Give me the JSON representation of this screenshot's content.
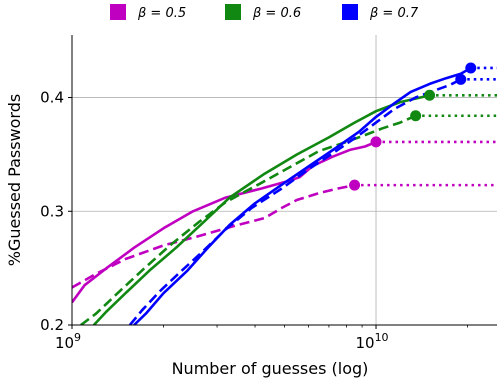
{
  "chart_data": {
    "type": "line",
    "xlabel": "Number of guesses (log)",
    "ylabel": "%Guessed Passwords",
    "x_scale": "log",
    "xlim": [
      1000000000,
      25000000000
    ],
    "ylim": [
      0.2,
      0.455
    ],
    "xticks": [
      {
        "value": 1000000000,
        "base": "10",
        "exp": "9"
      },
      {
        "value": 10000000000,
        "base": "10",
        "exp": "10"
      }
    ],
    "yticks": [
      {
        "value": 0.2,
        "label": "0.2"
      },
      {
        "value": 0.3,
        "label": "0.3"
      },
      {
        "value": 0.4,
        "label": "0.4"
      }
    ],
    "grid": true,
    "legend_placement": "top",
    "legend": [
      {
        "label": "β = 0.5",
        "color": "#c000c0"
      },
      {
        "label": "β = 0.6",
        "color": "#118811"
      },
      {
        "label": "β = 0.7",
        "color": "#0000ff"
      }
    ],
    "series": [
      {
        "group": 0,
        "color": "#c000c0",
        "style": "solid",
        "x": [
          1000000000,
          1100000000,
          1300000000,
          1600000000,
          2000000000,
          2500000000,
          3200000000,
          4200000000,
          5200000000,
          5600000000,
          6200000000,
          7200000000,
          8200000000,
          9200000000,
          10000000000
        ],
        "y": [
          0.22,
          0.235,
          0.25,
          0.268,
          0.285,
          0.3,
          0.312,
          0.32,
          0.327,
          0.33,
          0.34,
          0.348,
          0.354,
          0.357,
          0.361
        ],
        "end": {
          "x": 10000000000,
          "y": 0.361
        },
        "plateau_to": 25000000000
      },
      {
        "group": 0,
        "color": "#c000c0",
        "style": "dashed",
        "x": [
          1000000000,
          1200000000,
          1500000000,
          2000000000,
          2600000000,
          3400000000,
          4300000000,
          4900000000,
          5500000000,
          6500000000,
          7500000000,
          8500000000
        ],
        "y": [
          0.233,
          0.245,
          0.258,
          0.27,
          0.278,
          0.287,
          0.294,
          0.303,
          0.31,
          0.316,
          0.32,
          0.323
        ],
        "end": {
          "x": 8500000000,
          "y": 0.323
        },
        "plateau_to": 25000000000
      },
      {
        "group": 1,
        "color": "#118811",
        "style": "solid",
        "x": [
          1180000000,
          1300000000,
          1500000000,
          1800000000,
          2200000000,
          2700000000,
          3300000000,
          4300000000,
          5500000000,
          7000000000,
          8500000000,
          10000000000,
          12000000000,
          14000000000,
          15000000000
        ],
        "y": [
          0.2,
          0.212,
          0.228,
          0.248,
          0.268,
          0.29,
          0.312,
          0.333,
          0.35,
          0.365,
          0.378,
          0.388,
          0.396,
          0.4,
          0.402
        ],
        "end": {
          "x": 15000000000,
          "y": 0.402
        },
        "plateau_to": 25000000000
      },
      {
        "group": 1,
        "color": "#118811",
        "style": "dashed",
        "x": [
          1070000000,
          1200000000,
          1400000000,
          1700000000,
          2100000000,
          2600000000,
          3200000000,
          4200000000,
          5300000000,
          6500000000,
          7800000000,
          9000000000,
          10500000000,
          12000000000,
          13500000000
        ],
        "y": [
          0.2,
          0.21,
          0.227,
          0.248,
          0.27,
          0.29,
          0.308,
          0.325,
          0.34,
          0.353,
          0.36,
          0.366,
          0.373,
          0.378,
          0.384
        ],
        "end": {
          "x": 13500000000,
          "y": 0.384
        },
        "plateau_to": 25000000000
      },
      {
        "group": 2,
        "color": "#0000ff",
        "style": "solid",
        "x": [
          1600000000,
          1750000000,
          2000000000,
          2400000000,
          2800000000,
          3300000000,
          4000000000,
          5000000000,
          6200000000,
          7500000000,
          8800000000,
          10000000000,
          11500000000,
          13000000000,
          15000000000,
          17000000000,
          19000000000,
          20500000000
        ],
        "y": [
          0.2,
          0.21,
          0.228,
          0.248,
          0.268,
          0.288,
          0.307,
          0.325,
          0.342,
          0.357,
          0.37,
          0.383,
          0.395,
          0.405,
          0.412,
          0.417,
          0.421,
          0.426
        ],
        "end": {
          "x": 20500000000,
          "y": 0.426
        },
        "plateau_to": 25000000000
      },
      {
        "group": 2,
        "color": "#0000ff",
        "style": "dashed",
        "x": [
          1550000000,
          1700000000,
          1950000000,
          2300000000,
          2700000000,
          3200000000,
          3900000000,
          4900000000,
          6000000000,
          7300000000,
          8700000000,
          10000000000,
          11500000000,
          13500000000,
          15500000000,
          17500000000,
          19000000000
        ],
        "y": [
          0.2,
          0.213,
          0.23,
          0.248,
          0.265,
          0.284,
          0.303,
          0.32,
          0.337,
          0.352,
          0.366,
          0.378,
          0.39,
          0.4,
          0.406,
          0.411,
          0.416
        ],
        "end": {
          "x": 19000000000,
          "y": 0.416
        },
        "plateau_to": 25000000000
      }
    ]
  }
}
